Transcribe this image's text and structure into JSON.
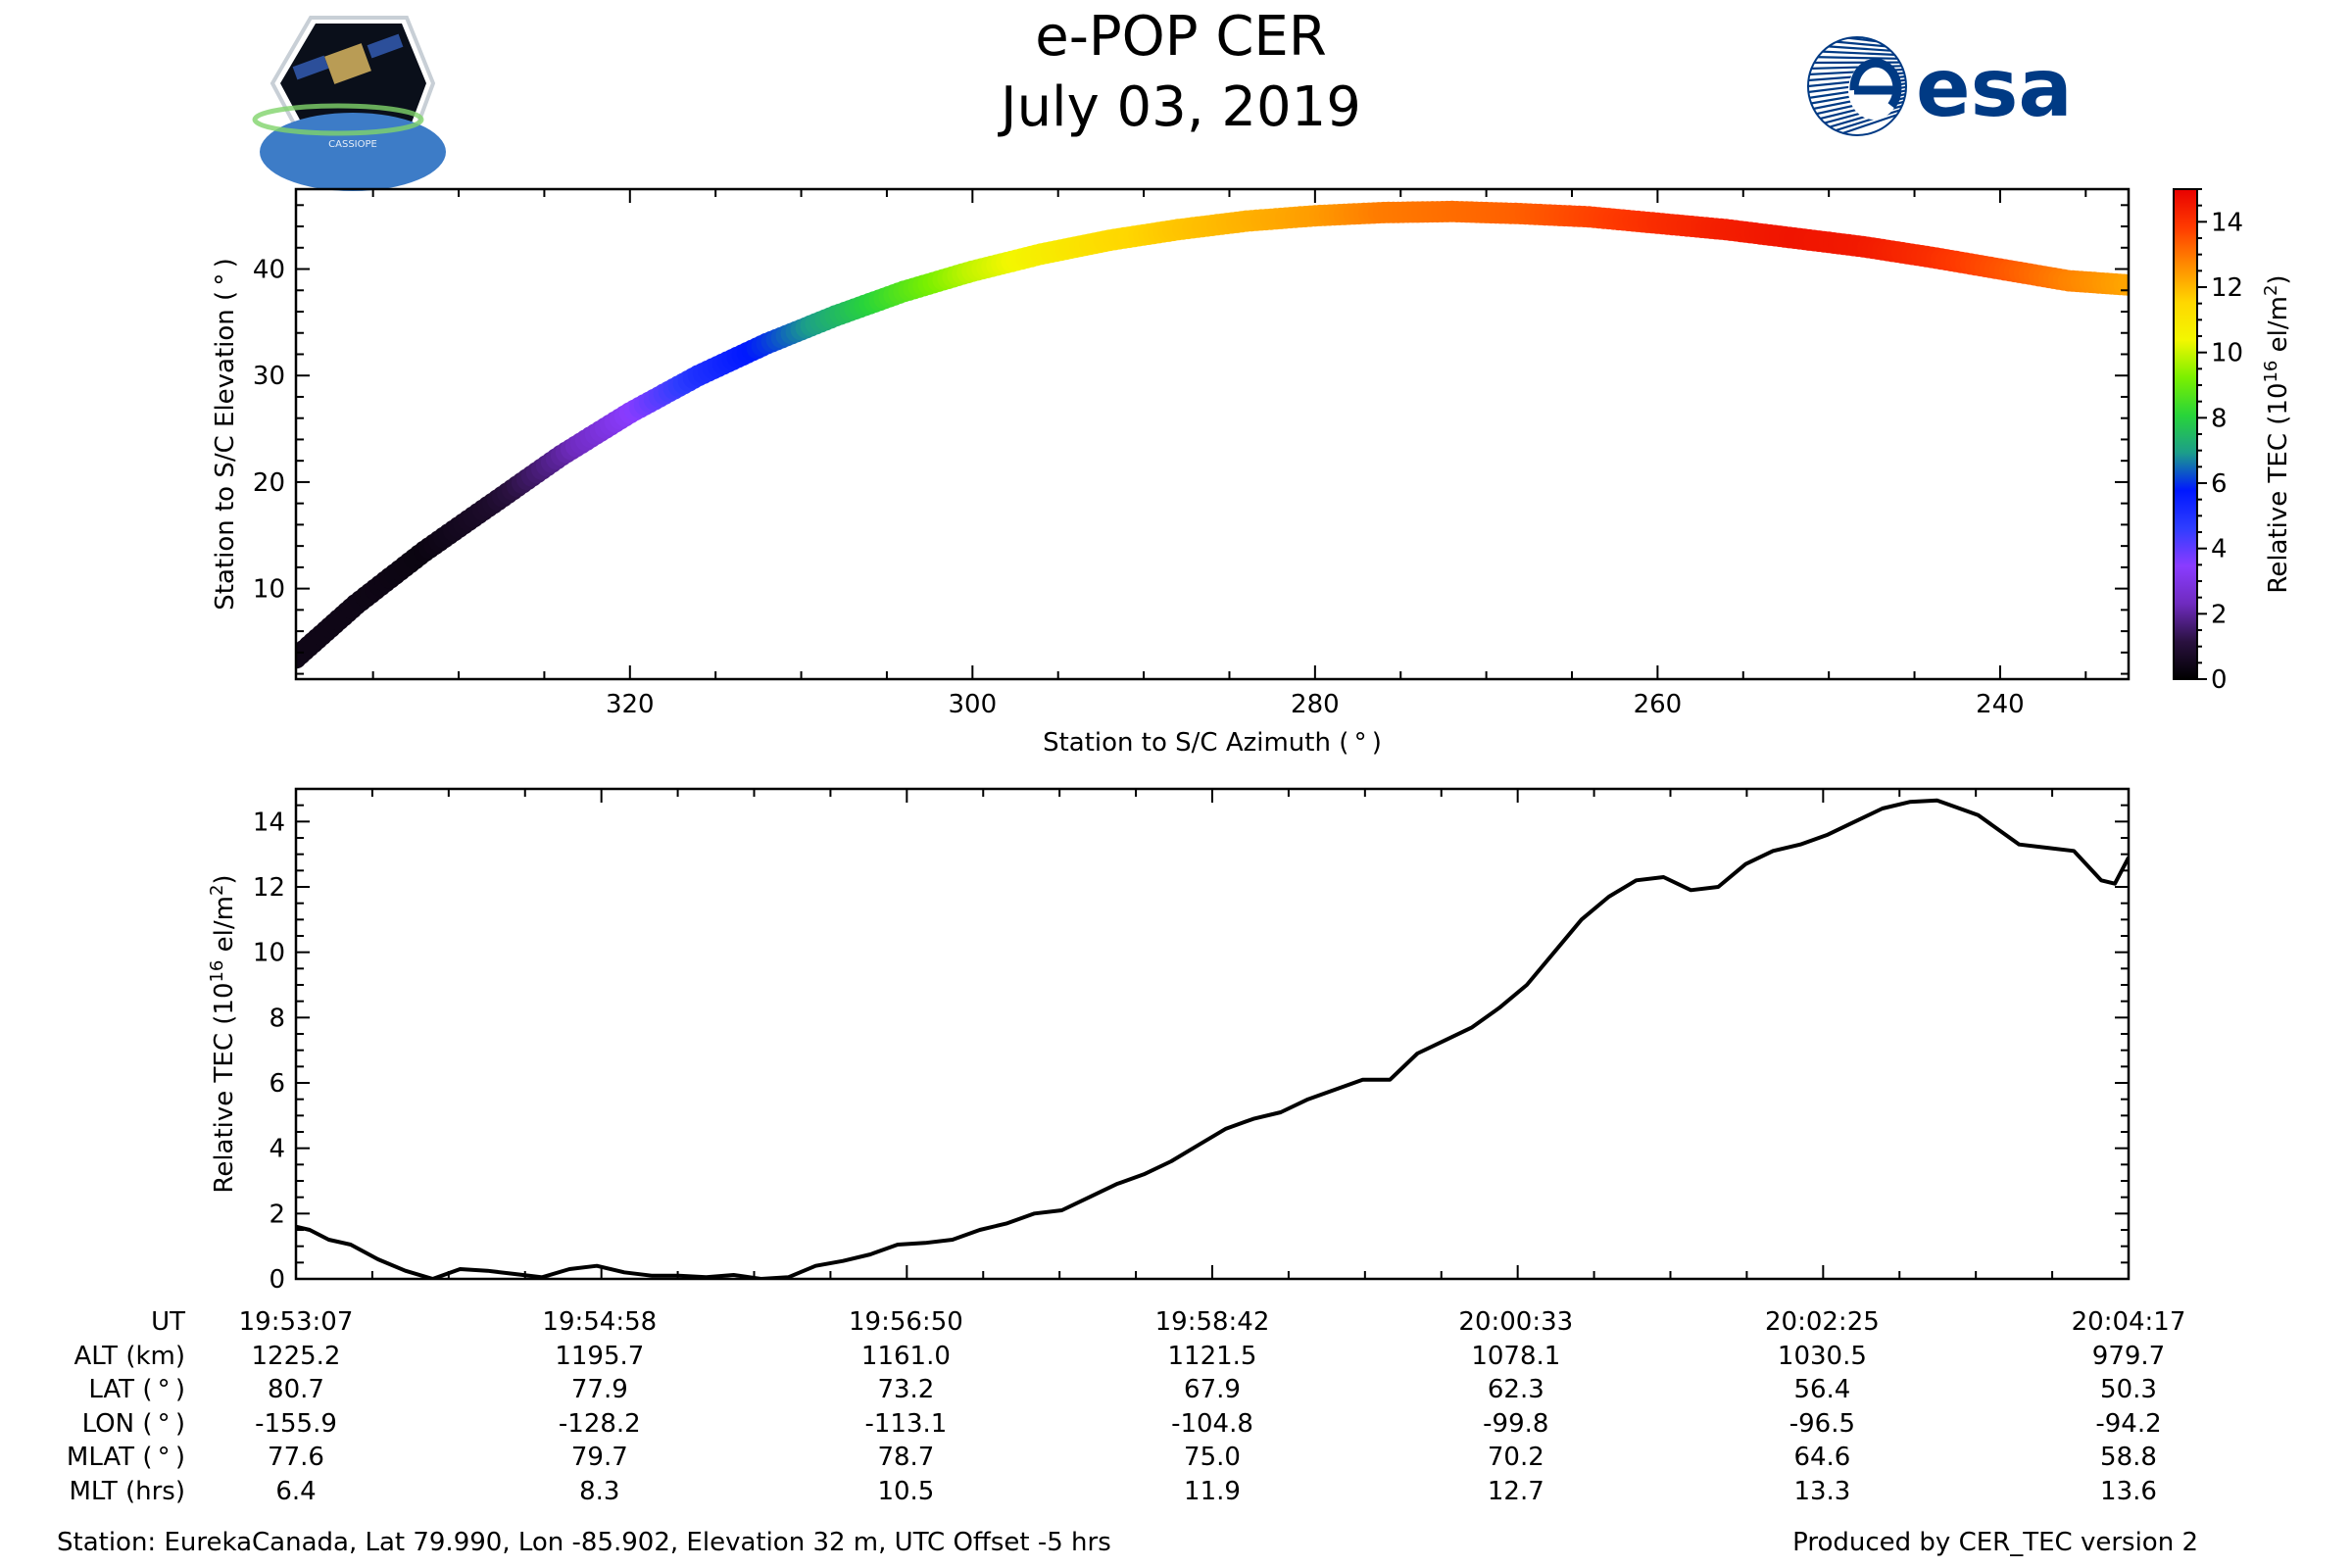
{
  "header": {
    "title": "e-POP CER",
    "date": "July 03, 2019",
    "left_logo_text": "CASSIOPE",
    "right_logo_text": "esa"
  },
  "colors": {
    "ink": "#000000",
    "background": "#ffffff",
    "esa_blue": "#003a84",
    "colormap": [
      "#000000",
      "#2a1140",
      "#6f2bbf",
      "#8a3cff",
      "#2f3dff",
      "#0018ff",
      "#1c9e8a",
      "#28d43a",
      "#7af000",
      "#f3f700",
      "#ffd700",
      "#ff8a00",
      "#ff3a00",
      "#e80000"
    ]
  },
  "footer": {
    "station": "Station: EurekaCanada, Lat 79.990, Lon -85.902, Elevation 32 m, UTC Offset -5 hrs",
    "produced": "Produced by CER_TEC version 2"
  },
  "ephemeris": {
    "row_labels": [
      "UT",
      "ALT (km)",
      "LAT ( ° )",
      "LON ( ° )",
      "MLAT ( ° )",
      "MLT (hrs)"
    ],
    "columns": [
      {
        "ut": "19:53:07",
        "alt": "1225.2",
        "lat": "80.7",
        "lon": "-155.9",
        "mlat": "77.6",
        "mlt": "6.4"
      },
      {
        "ut": "19:54:58",
        "alt": "1195.7",
        "lat": "77.9",
        "lon": "-128.2",
        "mlat": "79.7",
        "mlt": "8.3"
      },
      {
        "ut": "19:56:50",
        "alt": "1161.0",
        "lat": "73.2",
        "lon": "-113.1",
        "mlat": "78.7",
        "mlt": "10.5"
      },
      {
        "ut": "19:58:42",
        "alt": "1121.5",
        "lat": "67.9",
        "lon": "-104.8",
        "mlat": "75.0",
        "mlt": "11.9"
      },
      {
        "ut": "20:00:33",
        "alt": "1078.1",
        "lat": "62.3",
        "lon": "-99.8",
        "mlat": "70.2",
        "mlt": "12.7"
      },
      {
        "ut": "20:02:25",
        "alt": "1030.5",
        "lat": "56.4",
        "lon": "-96.5",
        "mlat": "64.6",
        "mlt": "13.3"
      },
      {
        "ut": "20:04:17",
        "alt": "979.7",
        "lat": "50.3",
        "lon": "-94.2",
        "mlat": "58.8",
        "mlt": "13.6"
      }
    ]
  },
  "chart_data": [
    {
      "type": "scatter",
      "title": "",
      "xlabel": "Station to S/C Azimuth ( ° )",
      "ylabel": "Station to S/C Elevation ( ° )",
      "xlim": [
        339.5,
        232.5
      ],
      "ylim": [
        1.5,
        47.5
      ],
      "xticks": [
        320,
        300,
        280,
        260,
        240
      ],
      "yticks": [
        10,
        20,
        30,
        40
      ],
      "colorbar": {
        "label": "Relative TEC (10^16 el/m^2)",
        "label_main": "Relative TEC (10",
        "label_sup_exp": "16",
        "label_unit": " el/m",
        "label_sup_sq": "2",
        "label_close": ")",
        "range": [
          0,
          15
        ],
        "ticks": [
          0,
          2,
          4,
          6,
          8,
          10,
          12,
          14
        ]
      },
      "x": [
        339.5,
        336,
        332,
        328,
        324,
        320,
        316,
        312,
        308,
        304,
        300,
        296,
        292,
        288,
        284,
        280,
        276,
        272,
        268,
        264,
        260,
        256,
        252,
        248,
        244,
        240,
        236,
        232.5
      ],
      "y": [
        3.5,
        8.5,
        13.5,
        18.0,
        22.5,
        26.5,
        30.0,
        33.0,
        35.6,
        37.9,
        39.8,
        41.4,
        42.7,
        43.7,
        44.5,
        45.0,
        45.3,
        45.4,
        45.2,
        44.9,
        44.3,
        43.7,
        42.9,
        42.1,
        41.1,
        40.0,
        38.9,
        38.5
      ],
      "tec": [
        0.4,
        0.4,
        0.3,
        0.8,
        2.0,
        3.4,
        5.0,
        6.0,
        7.4,
        8.7,
        9.9,
        10.7,
        11.4,
        11.8,
        12.1,
        12.4,
        12.9,
        13.1,
        13.3,
        13.7,
        14.1,
        14.4,
        14.6,
        14.5,
        14.1,
        13.5,
        12.8,
        12.3
      ]
    },
    {
      "type": "line",
      "title": "",
      "xlabel": "",
      "ylabel": "Relative TEC (10^16 el/m^2)",
      "ylabel_main": "Relative TEC (10",
      "ylabel_sup_exp": "16",
      "ylabel_unit": " el/m",
      "ylabel_sup_sq": "2",
      "ylabel_close": ")",
      "xlim_seconds": [
        0,
        670
      ],
      "xtick_seconds": [
        0,
        111,
        223,
        335,
        446,
        558,
        670
      ],
      "ylim": [
        0,
        15
      ],
      "yticks": [
        0,
        2,
        4,
        6,
        8,
        10,
        12,
        14
      ],
      "x_seconds": [
        0,
        5,
        12,
        20,
        30,
        40,
        50,
        60,
        70,
        80,
        90,
        100,
        110,
        120,
        130,
        140,
        150,
        160,
        170,
        180,
        190,
        200,
        210,
        220,
        230,
        240,
        250,
        260,
        270,
        280,
        290,
        300,
        310,
        320,
        330,
        340,
        350,
        360,
        370,
        380,
        390,
        400,
        410,
        420,
        430,
        440,
        450,
        460,
        470,
        480,
        490,
        500,
        510,
        520,
        530,
        540,
        550,
        560,
        570,
        580,
        590,
        600,
        605,
        615,
        620,
        630,
        640,
        650,
        660,
        665,
        670
      ],
      "values": [
        1.6,
        1.5,
        1.2,
        1.05,
        0.6,
        0.25,
        0.0,
        0.3,
        0.25,
        0.15,
        0.05,
        0.3,
        0.4,
        0.2,
        0.1,
        0.1,
        0.05,
        0.12,
        0.0,
        0.05,
        0.4,
        0.55,
        0.75,
        1.05,
        1.1,
        1.2,
        1.5,
        1.7,
        2.0,
        2.1,
        2.5,
        2.9,
        3.2,
        3.6,
        4.1,
        4.6,
        4.9,
        5.1,
        5.5,
        5.8,
        6.1,
        6.1,
        6.9,
        7.3,
        7.7,
        8.3,
        9.0,
        10.0,
        11.0,
        11.7,
        12.2,
        12.3,
        11.9,
        12.0,
        12.7,
        13.1,
        13.3,
        13.6,
        14.0,
        14.4,
        14.6,
        14.65,
        14.5,
        14.2,
        13.9,
        13.3,
        13.2,
        13.1,
        12.2,
        12.1,
        12.9
      ]
    }
  ]
}
